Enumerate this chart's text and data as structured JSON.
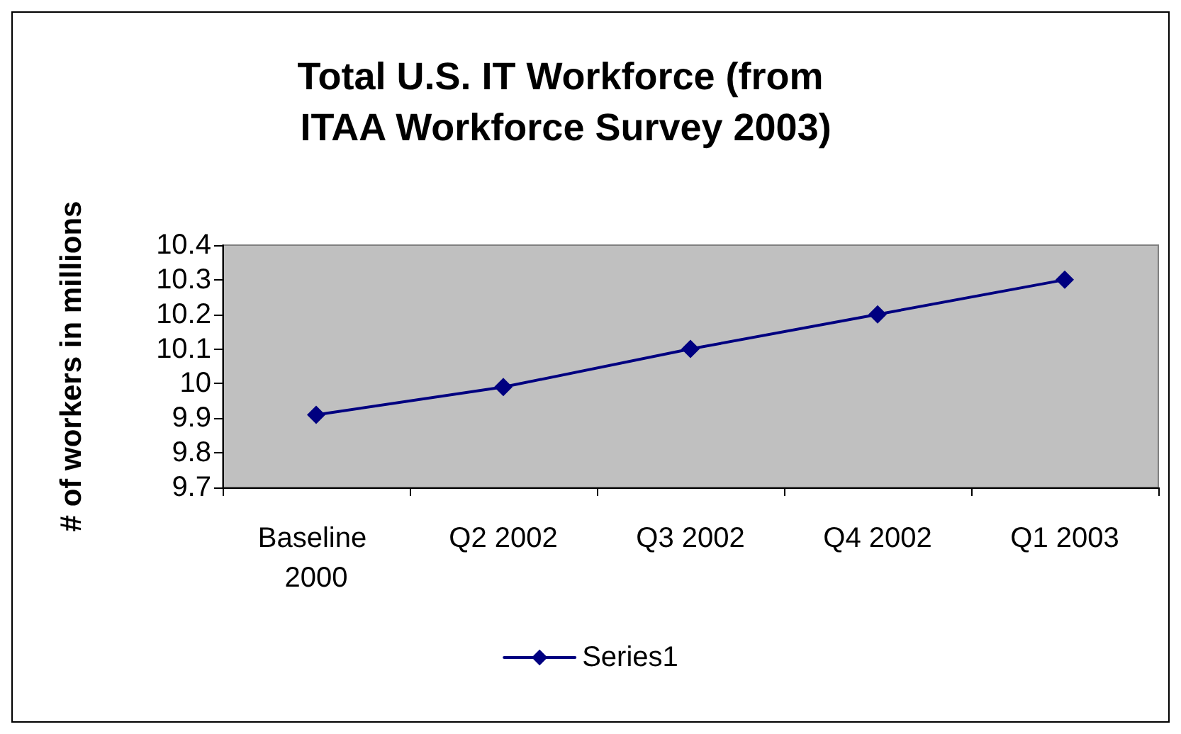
{
  "chart_data": {
    "type": "line",
    "title": "Total U.S. IT Workforce (from ITAA Workforce Survey 2003)",
    "ylabel": "# of workers in millions",
    "categories": [
      "Baseline 2000",
      "Q2 2002",
      "Q3 2002",
      "Q4 2002",
      "Q1 2003"
    ],
    "series": [
      {
        "name": "Series1",
        "color": "#000080",
        "values": [
          9.91,
          9.99,
          10.1,
          10.2,
          10.3
        ]
      }
    ],
    "ylim": [
      9.7,
      10.4
    ],
    "yticks": [
      9.7,
      9.8,
      9.9,
      10,
      10.1,
      10.2,
      10.3,
      10.4
    ],
    "grid": false,
    "legend": "bottom",
    "marker": "diamond",
    "line_style": "solid"
  }
}
